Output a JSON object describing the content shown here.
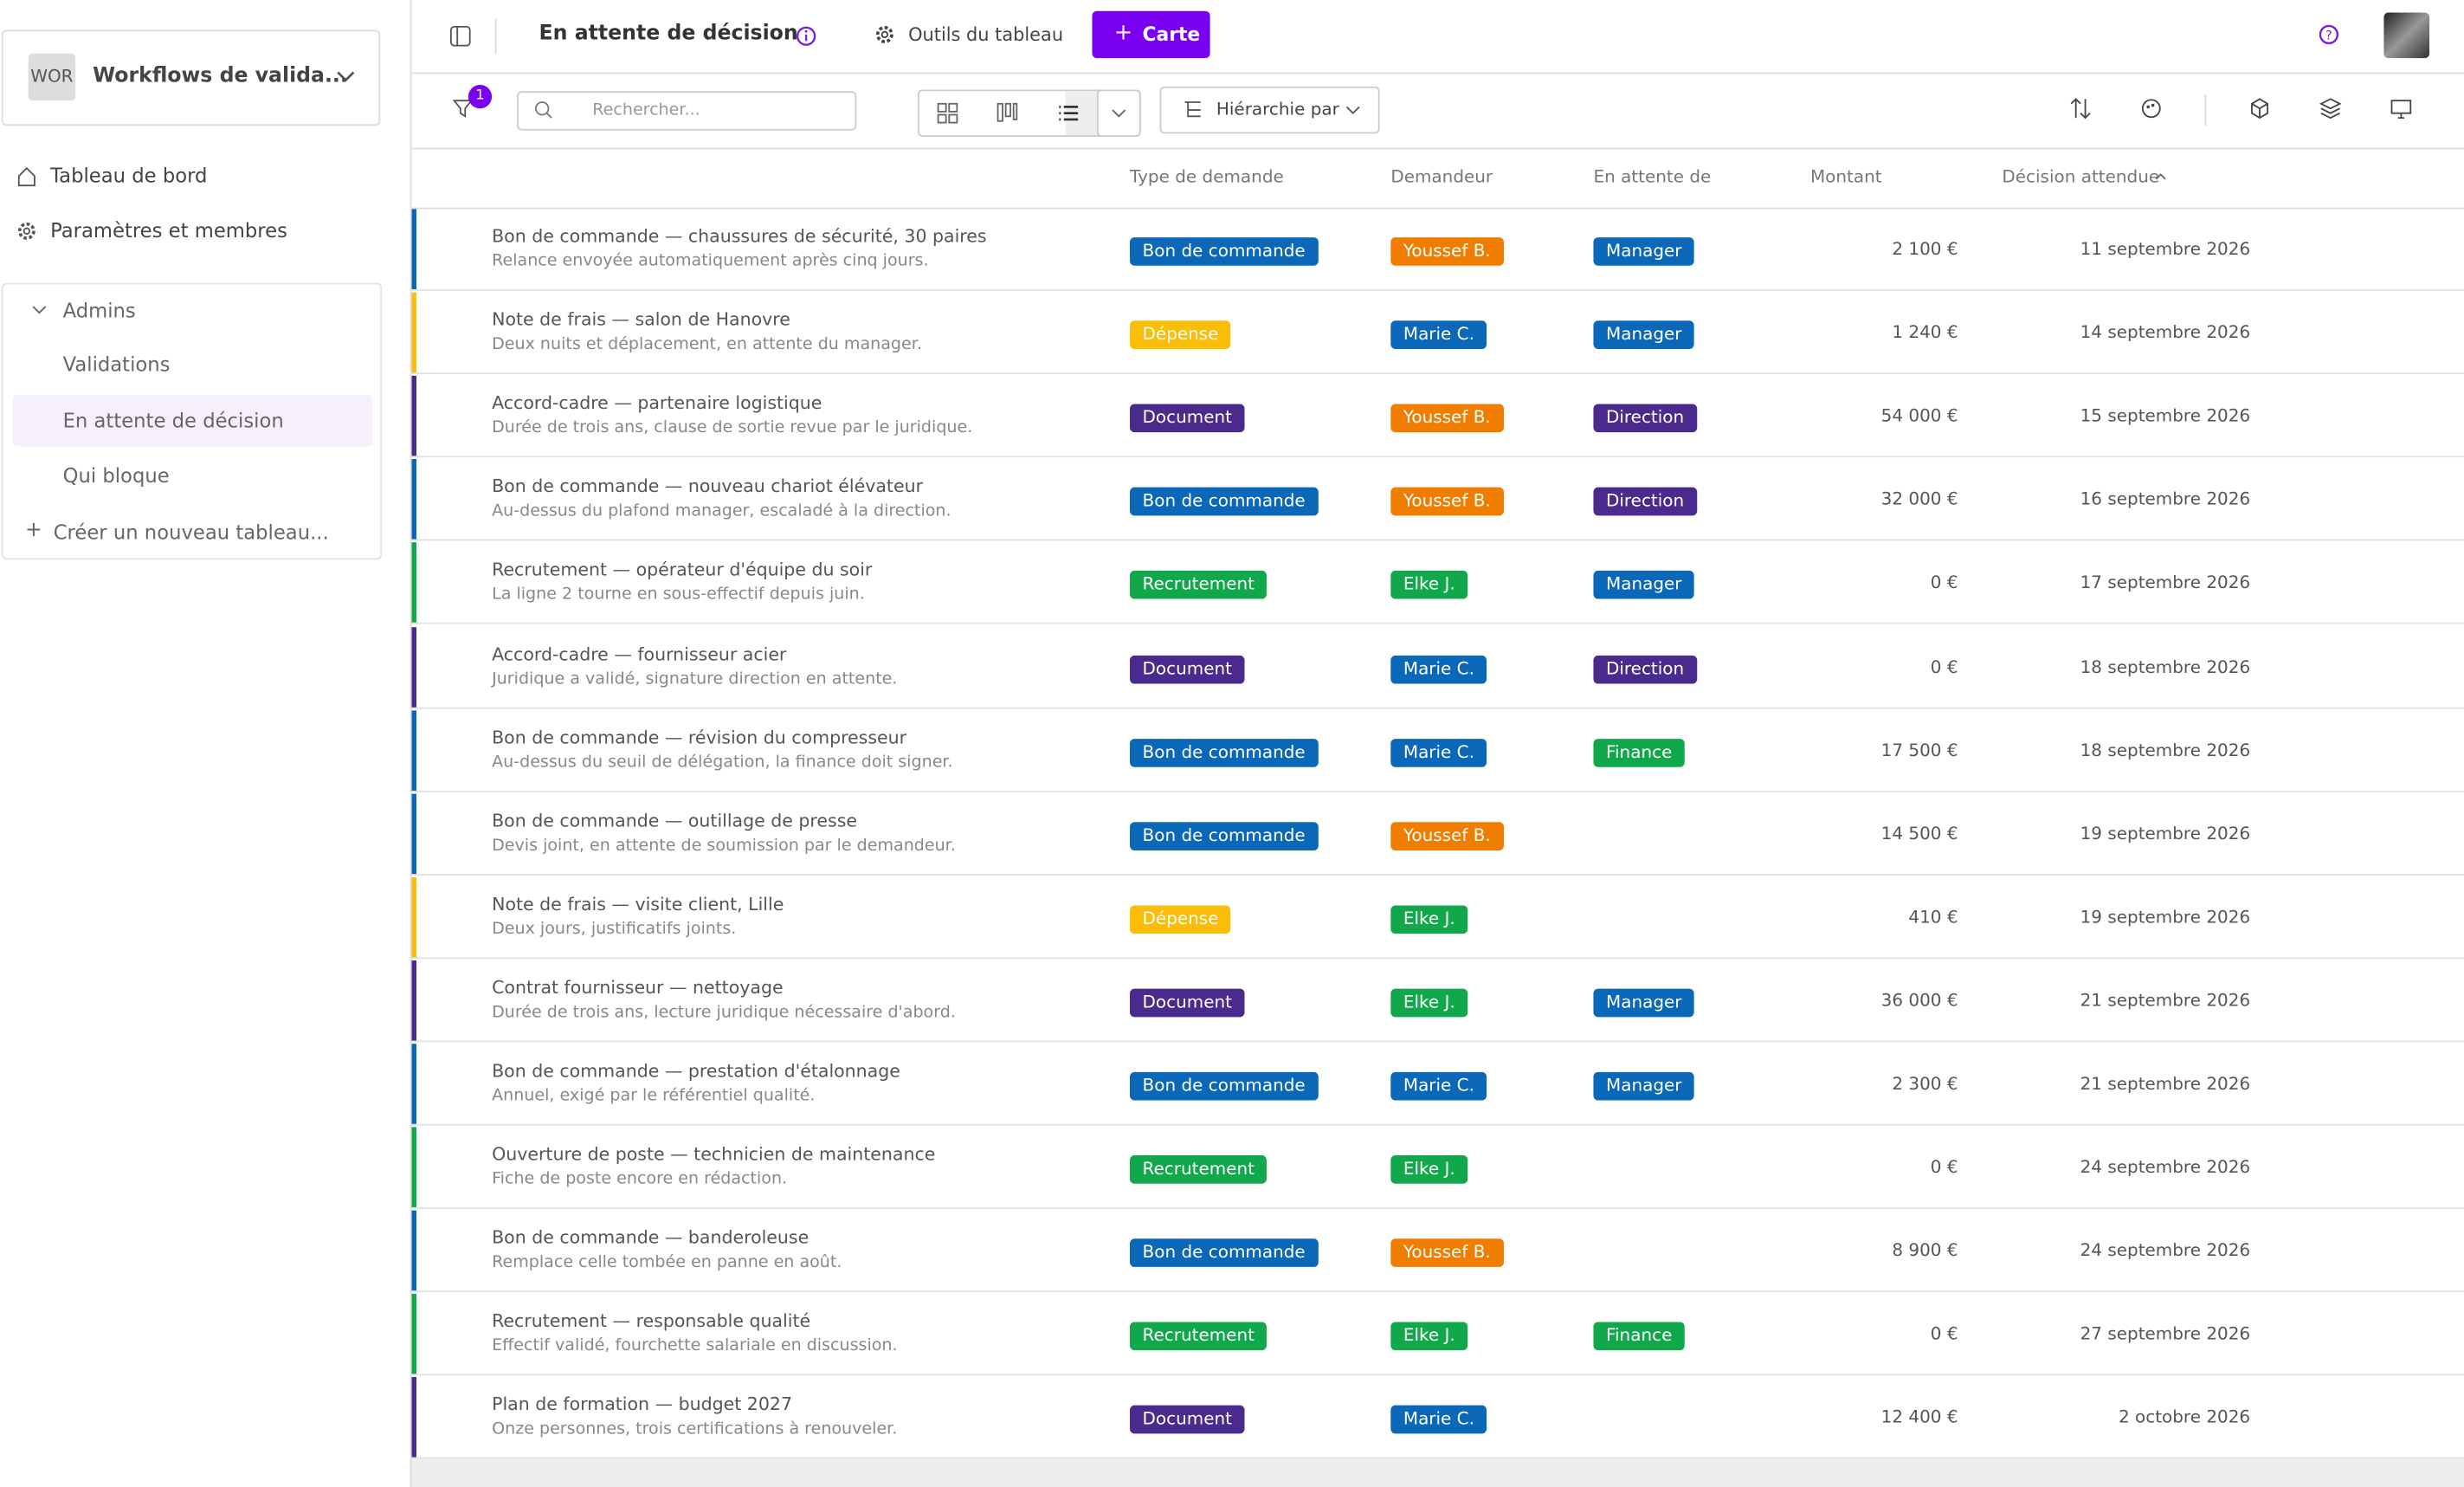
{
  "sidebar": {
    "workspace_badge": "WOR",
    "workspace": "Workflows de valida...",
    "nav": [
      "Tableau de bord",
      "Paramètres et membres"
    ],
    "group": "Admins",
    "boards": [
      "Validations",
      "En attente de décision",
      "Qui bloque"
    ],
    "active_board": 1,
    "create": "Créer un nouveau tableau..."
  },
  "topbar": {
    "title": "En attente de décision",
    "tools": "Outils du tableau",
    "add_button": "Carte"
  },
  "toolbar": {
    "filter_count": "1",
    "search_placeholder": "Rechercher...",
    "hierarchy": "Hiérarchie par"
  },
  "table": {
    "columns": [
      "Type de demande",
      "Demandeur",
      "En attente de",
      "Montant",
      "Décision attendue"
    ],
    "colors": {
      "Bon de commande": "#0b67b7",
      "Dépense": "#fbbd08",
      "Document": "#4a2a8c",
      "Recrutement": "#10a84a",
      "Youssef B.": "#f07c00",
      "Marie C.": "#0b67b7",
      "Elke J.": "#10a84a",
      "Manager": "#0b67b7",
      "Direction": "#4a2a8c",
      "Finance": "#10a84a"
    },
    "rows": [
      {
        "title": "Bon de commande — chaussures de sécurité, 30 paires",
        "subtitle": "Relance envoyée automatiquement après cinq jours.",
        "type": "Bon de commande",
        "requester": "Youssef B.",
        "waiting": "Manager",
        "amount": "2 100 €",
        "date": "11 septembre 2026"
      },
      {
        "title": "Note de frais — salon de Hanovre",
        "subtitle": "Deux nuits et déplacement, en attente du manager.",
        "type": "Dépense",
        "requester": "Marie C.",
        "waiting": "Manager",
        "amount": "1 240 €",
        "date": "14 septembre 2026"
      },
      {
        "title": "Accord-cadre — partenaire logistique",
        "subtitle": "Durée de trois ans, clause de sortie revue par le juridique.",
        "type": "Document",
        "requester": "Youssef B.",
        "waiting": "Direction",
        "amount": "54 000 €",
        "date": "15 septembre 2026"
      },
      {
        "title": "Bon de commande — nouveau chariot élévateur",
        "subtitle": "Au-dessus du plafond manager, escaladé à la direction.",
        "type": "Bon de commande",
        "requester": "Youssef B.",
        "waiting": "Direction",
        "amount": "32 000 €",
        "date": "16 septembre 2026"
      },
      {
        "title": "Recrutement — opérateur d'équipe du soir",
        "subtitle": "La ligne 2 tourne en sous-effectif depuis juin.",
        "type": "Recrutement",
        "requester": "Elke J.",
        "waiting": "Manager",
        "amount": "0 €",
        "date": "17 septembre 2026"
      },
      {
        "title": "Accord-cadre — fournisseur acier",
        "subtitle": "Juridique a validé, signature direction en attente.",
        "type": "Document",
        "requester": "Marie C.",
        "waiting": "Direction",
        "amount": "0 €",
        "date": "18 septembre 2026"
      },
      {
        "title": "Bon de commande — révision du compresseur",
        "subtitle": "Au-dessus du seuil de délégation, la finance doit signer.",
        "type": "Bon de commande",
        "requester": "Marie C.",
        "waiting": "Finance",
        "amount": "17 500 €",
        "date": "18 septembre 2026"
      },
      {
        "title": "Bon de commande — outillage de presse",
        "subtitle": "Devis joint, en attente de soumission par le demandeur.",
        "type": "Bon de commande",
        "requester": "Youssef B.",
        "amount": "14 500 €",
        "date": "19 septembre 2026"
      },
      {
        "title": "Note de frais — visite client, Lille",
        "subtitle": "Deux jours, justificatifs joints.",
        "type": "Dépense",
        "requester": "Elke J.",
        "amount": "410 €",
        "date": "19 septembre 2026"
      },
      {
        "title": "Contrat fournisseur — nettoyage",
        "subtitle": "Durée de trois ans, lecture juridique nécessaire d'abord.",
        "type": "Document",
        "requester": "Elke J.",
        "waiting": "Manager",
        "amount": "36 000 €",
        "date": "21 septembre 2026"
      },
      {
        "title": "Bon de commande — prestation d'étalonnage",
        "subtitle": "Annuel, exigé par le référentiel qualité.",
        "type": "Bon de commande",
        "requester": "Marie C.",
        "waiting": "Manager",
        "amount": "2 300 €",
        "date": "21 septembre 2026"
      },
      {
        "title": "Ouverture de poste — technicien de maintenance",
        "subtitle": "Fiche de poste encore en rédaction.",
        "type": "Recrutement",
        "requester": "Elke J.",
        "amount": "0 €",
        "date": "24 septembre 2026"
      },
      {
        "title": "Bon de commande — banderoleuse",
        "subtitle": "Remplace celle tombée en panne en août.",
        "type": "Bon de commande",
        "requester": "Youssef B.",
        "amount": "8 900 €",
        "date": "24 septembre 2026"
      },
      {
        "title": "Recrutement — responsable qualité",
        "subtitle": "Effectif validé, fourchette salariale en discussion.",
        "type": "Recrutement",
        "requester": "Elke J.",
        "waiting": "Finance",
        "amount": "0 €",
        "date": "27 septembre 2026"
      },
      {
        "title": "Plan de formation — budget 2027",
        "subtitle": "Onze personnes, trois certifications à renouveler.",
        "type": "Document",
        "requester": "Marie C.",
        "amount": "12 400 €",
        "date": "2 octobre 2026"
      }
    ]
  }
}
